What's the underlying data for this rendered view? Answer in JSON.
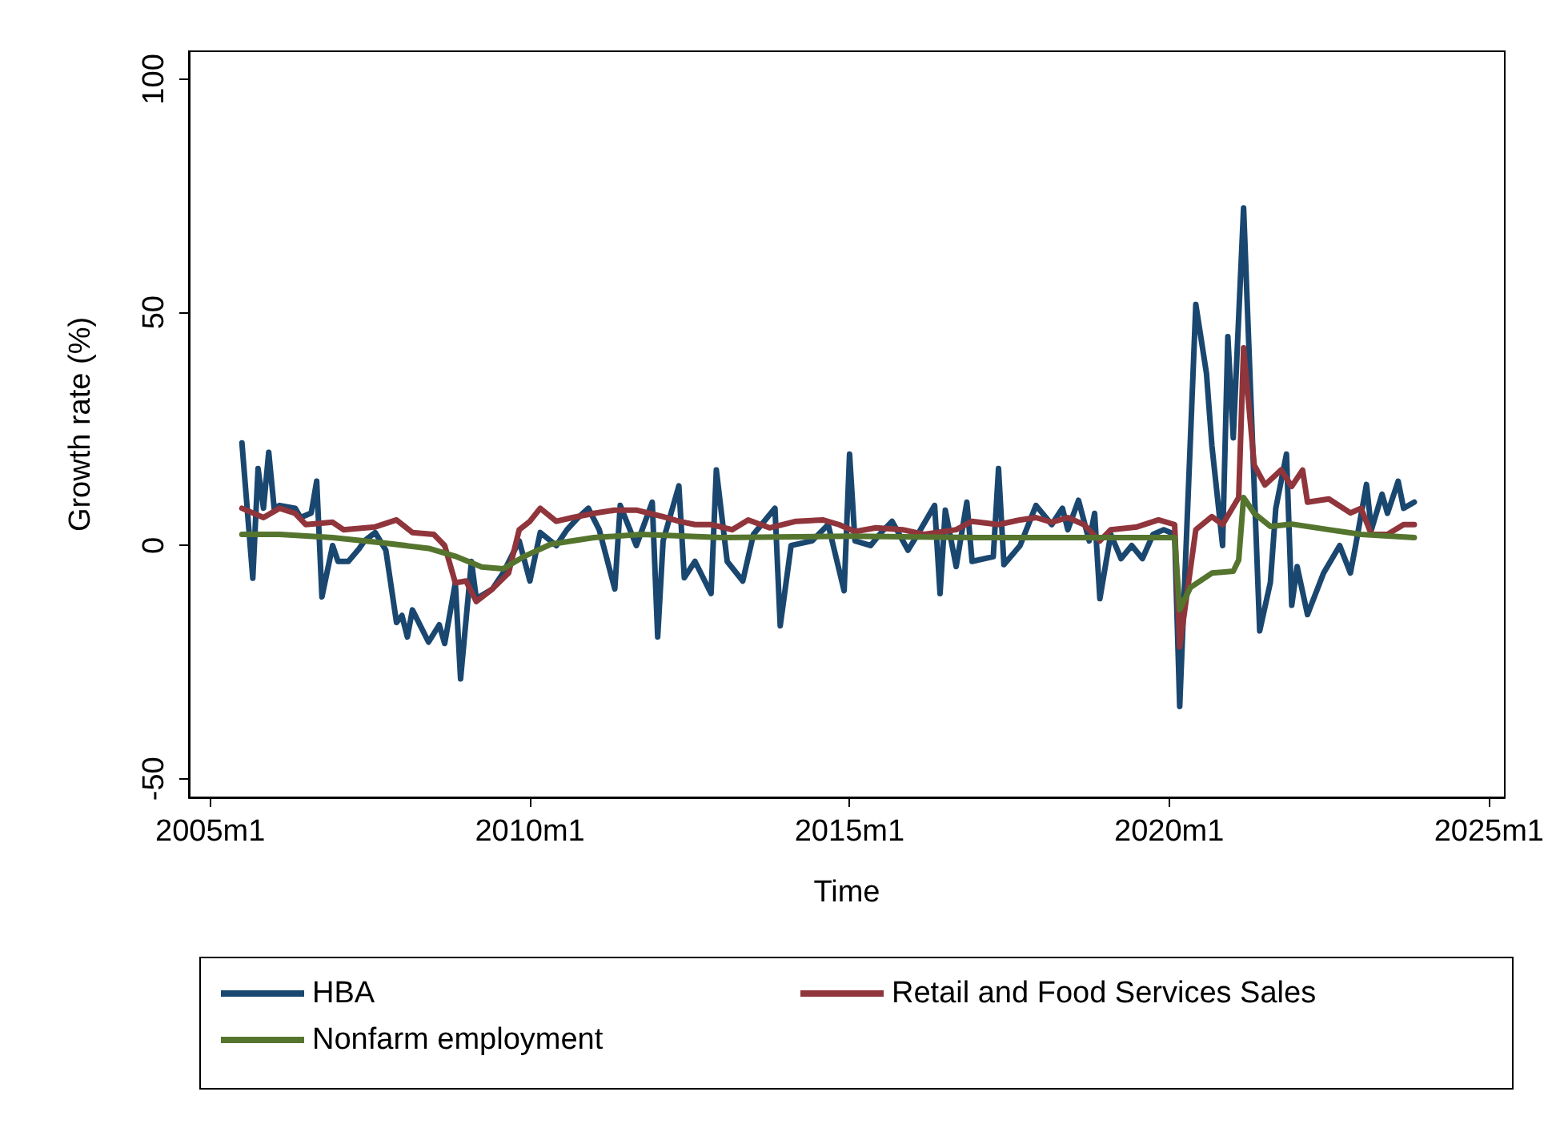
{
  "chart_data": {
    "type": "line",
    "xlabel": "Time",
    "ylabel": "Growth rate (%)",
    "xlim": [
      "2004-09",
      "2025-04"
    ],
    "xticks": [
      {
        "value": "2005-01",
        "label": "2005m1"
      },
      {
        "value": "2010-01",
        "label": "2010m1"
      },
      {
        "value": "2015-01",
        "label": "2015m1"
      },
      {
        "value": "2020-01",
        "label": "2020m1"
      },
      {
        "value": "2025-01",
        "label": "2025m1"
      }
    ],
    "ylim": [
      -54,
      106
    ],
    "yticks": [
      -50,
      0,
      50,
      100
    ],
    "grid": false,
    "legend": "bottom",
    "marker": "none",
    "line_style": "solid",
    "series": [
      {
        "name": "HBA",
        "color": "#1a476f",
        "x": [
          "2005-07",
          "2005-09",
          "2005-10",
          "2005-11",
          "2005-12",
          "2006-01",
          "2006-02",
          "2006-05",
          "2006-06",
          "2006-08",
          "2006-09",
          "2006-10",
          "2006-12",
          "2007-01",
          "2007-03",
          "2007-05",
          "2007-06",
          "2007-08",
          "2007-10",
          "2007-12",
          "2008-01",
          "2008-02",
          "2008-03",
          "2008-06",
          "2008-08",
          "2008-09",
          "2008-11",
          "2008-12",
          "2009-02",
          "2009-03",
          "2009-06",
          "2009-08",
          "2009-11",
          "2010-01",
          "2010-03",
          "2010-06",
          "2010-08",
          "2010-10",
          "2010-12",
          "2011-02",
          "2011-05",
          "2011-06",
          "2011-09",
          "2011-12",
          "2012-01",
          "2012-02",
          "2012-05",
          "2012-06",
          "2012-08",
          "2012-11",
          "2012-12",
          "2013-02",
          "2013-05",
          "2013-07",
          "2013-11",
          "2013-12",
          "2014-02",
          "2014-06",
          "2014-09",
          "2014-12",
          "2015-01",
          "2015-02",
          "2015-05",
          "2015-07",
          "2015-09",
          "2015-12",
          "2016-02",
          "2016-05",
          "2016-06",
          "2016-07",
          "2016-09",
          "2016-11",
          "2016-12",
          "2017-04",
          "2017-05",
          "2017-06",
          "2017-09",
          "2017-12",
          "2018-03",
          "2018-05",
          "2018-06",
          "2018-08",
          "2018-10",
          "2018-11",
          "2018-12",
          "2019-02",
          "2019-04",
          "2019-06",
          "2019-08",
          "2019-10",
          "2019-12",
          "2020-02",
          "2020-03",
          "2020-06",
          "2020-08",
          "2020-09",
          "2020-11",
          "2020-12",
          "2021-01",
          "2021-03",
          "2021-06",
          "2021-08",
          "2021-09",
          "2021-11",
          "2021-12",
          "2022-01",
          "2022-03",
          "2022-06",
          "2022-09",
          "2022-11",
          "2022-12",
          "2023-02",
          "2023-03",
          "2023-05",
          "2023-06",
          "2023-08",
          "2023-09",
          "2023-11"
        ],
        "values": [
          22,
          -7,
          16.5,
          8,
          20,
          8,
          8.6,
          8,
          6,
          7,
          13.8,
          -11,
          0,
          -3.4,
          -3.4,
          -0.7,
          1,
          2.8,
          -1,
          -16.5,
          -15,
          -19.6,
          -13.8,
          -20.7,
          -17,
          -21,
          -8,
          -28.6,
          -3.4,
          -11.4,
          -9.3,
          -5.9,
          1,
          -7.6,
          2.8,
          0,
          3.4,
          5.9,
          8,
          3.4,
          -9.3,
          8.6,
          0,
          9.3,
          -19.6,
          1,
          12.8,
          -6.9,
          -3.4,
          -10.3,
          16.2,
          -3.4,
          -7.6,
          2.4,
          8,
          -17.2,
          0,
          1,
          4.5,
          -9.7,
          19.6,
          1,
          0,
          2.8,
          5.2,
          -1,
          2.8,
          8.6,
          -10.3,
          7.6,
          -4.5,
          9.3,
          -3.4,
          -2.4,
          16.5,
          -4.1,
          0,
          8.6,
          4.5,
          8,
          3.4,
          9.7,
          1,
          6.9,
          -11.4,
          2.4,
          -2.8,
          0,
          -2.8,
          2.4,
          3.4,
          2.4,
          -34.5,
          51.7,
          36.9,
          21.4,
          0,
          44.8,
          23.1,
          72.4,
          -18.3,
          -7.9,
          8,
          19.6,
          -12.8,
          -4.5,
          -14.8,
          -5.9,
          0,
          -5.9,
          0,
          13.1,
          3.4,
          11,
          6.9,
          13.8,
          8,
          9.3
        ]
      },
      {
        "name": "Retail and Food Services Sales",
        "color": "#90353b",
        "x": [
          "2005-07",
          "2005-11",
          "2006-02",
          "2006-05",
          "2006-07",
          "2006-12",
          "2007-02",
          "2007-08",
          "2007-12",
          "2008-03",
          "2008-07",
          "2008-09",
          "2008-11",
          "2009-01",
          "2009-03",
          "2009-06",
          "2009-09",
          "2009-11",
          "2010-01",
          "2010-03",
          "2010-06",
          "2010-09",
          "2011-01",
          "2011-05",
          "2011-09",
          "2012-02",
          "2012-05",
          "2012-08",
          "2012-11",
          "2013-03",
          "2013-06",
          "2013-10",
          "2014-03",
          "2014-08",
          "2014-11",
          "2015-02",
          "2015-06",
          "2015-11",
          "2016-03",
          "2016-09",
          "2016-12",
          "2017-05",
          "2017-09",
          "2017-12",
          "2018-03",
          "2018-06",
          "2018-09",
          "2018-12",
          "2019-02",
          "2019-07",
          "2019-11",
          "2020-02",
          "2020-03",
          "2020-06",
          "2020-09",
          "2020-11",
          "2021-02",
          "2021-03",
          "2021-05",
          "2021-07",
          "2021-10",
          "2021-12",
          "2022-02",
          "2022-03",
          "2022-07",
          "2022-11",
          "2023-01",
          "2023-03",
          "2023-06",
          "2023-09",
          "2023-11"
        ],
        "values": [
          8,
          6,
          8,
          6.9,
          4.5,
          5,
          3.4,
          4,
          5.5,
          2.8,
          2.4,
          0,
          -8,
          -7.6,
          -12,
          -9.3,
          -5.9,
          3.4,
          5.2,
          8,
          5.2,
          6,
          6.9,
          7.6,
          7.6,
          6.2,
          5.2,
          4.5,
          4.5,
          3.4,
          5.5,
          3.8,
          5.2,
          5.5,
          4.5,
          3,
          3.8,
          3.4,
          2.4,
          3.4,
          5.2,
          4.5,
          5.5,
          6,
          5,
          6,
          4.5,
          1,
          3.4,
          4,
          5.5,
          4.5,
          -21.7,
          3.4,
          6.2,
          4.5,
          10.3,
          42.4,
          17.2,
          13,
          16.2,
          12.7,
          16.2,
          9.3,
          10,
          7,
          8,
          2.4,
          2.4,
          4.5,
          4.5
        ]
      },
      {
        "name": "Nonfarm employment",
        "color": "#55752f",
        "x": [
          "2005-07",
          "2006-02",
          "2006-12",
          "2007-10",
          "2008-06",
          "2008-11",
          "2009-04",
          "2009-08",
          "2009-12",
          "2010-05",
          "2011-01",
          "2011-10",
          "2013-01",
          "2015-01",
          "2017-01",
          "2019-01",
          "2020-02",
          "2020-03",
          "2020-05",
          "2020-09",
          "2021-01",
          "2021-02",
          "2021-03",
          "2021-05",
          "2021-08",
          "2021-12",
          "2022-07",
          "2023-01",
          "2023-11"
        ],
        "values": [
          2.4,
          2.4,
          1.7,
          0.5,
          -0.6,
          -2.3,
          -4.6,
          -5,
          -2.3,
          0.3,
          1.7,
          2.4,
          1.7,
          2,
          1.7,
          1.7,
          1.7,
          -13.8,
          -9,
          -5.9,
          -5.5,
          -3.1,
          10.3,
          6.9,
          4.1,
          4.6,
          3.4,
          2.4,
          1.7
        ]
      }
    ]
  }
}
